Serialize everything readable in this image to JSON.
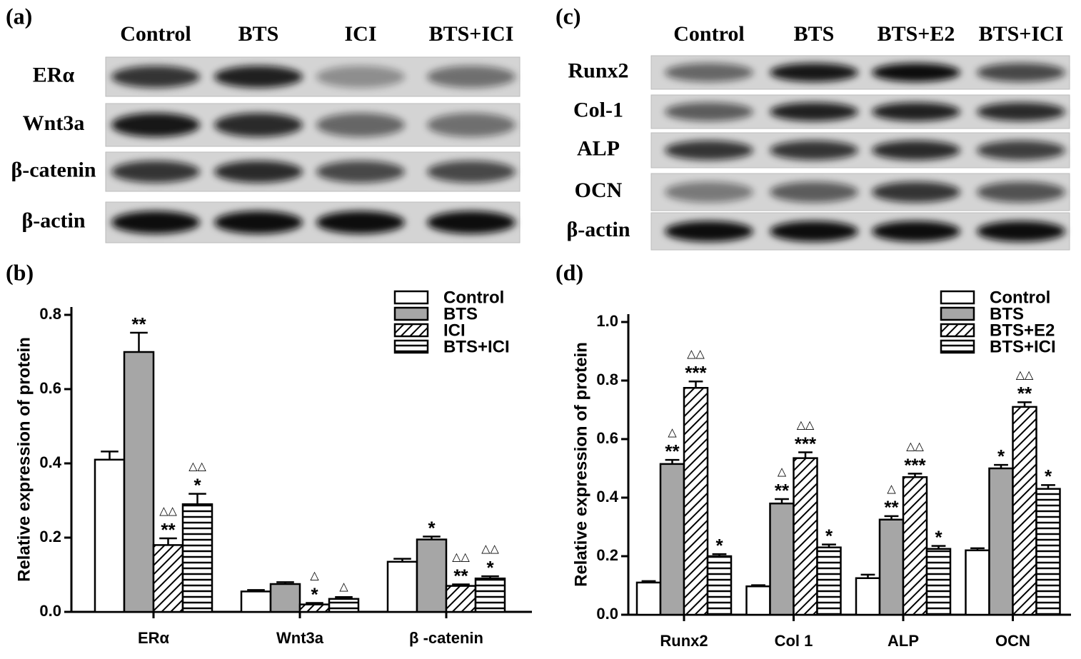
{
  "blot_a": {
    "panel_label": "(a)",
    "lanes": [
      "Control",
      "BTS",
      "ICI",
      "BTS+ICI"
    ],
    "rows": [
      "ERα",
      "Wnt3a",
      "β-catenin",
      "β-actin"
    ]
  },
  "blot_c": {
    "panel_label": "(c)",
    "lanes": [
      "Control",
      "BTS",
      "BTS+E2",
      "BTS+ICI"
    ],
    "rows": [
      "Runx2",
      "Col-1",
      "ALP",
      "OCN",
      "β-actin"
    ]
  },
  "chart_data": [
    {
      "type": "bar",
      "panel_label": "(b)",
      "y_label": "Relative expression of protein",
      "categories": [
        "ERα",
        "Wnt3a",
        "β -catenin"
      ],
      "ylim": [
        0,
        0.8
      ],
      "yticks": [
        {
          "value": 0,
          "label": "0.0"
        },
        0.2,
        0.4,
        0.6,
        0.8
      ],
      "legend": "top-right",
      "series": [
        {
          "name": "Control",
          "color": "#ffffff",
          "pattern": "solid",
          "values": [
            0.41,
            0.055,
            0.135
          ],
          "errors": [
            0.022,
            0.004,
            0.008
          ],
          "sig": [
            null,
            null,
            null
          ],
          "tri": [
            null,
            null,
            null
          ]
        },
        {
          "name": "BTS",
          "color": "#a6a6a6",
          "pattern": "solid",
          "values": [
            0.7,
            0.075,
            0.195
          ],
          "errors": [
            0.052,
            0.005,
            0.008
          ],
          "sig": [
            "**",
            null,
            "*"
          ],
          "tri": [
            null,
            null,
            null
          ]
        },
        {
          "name": "ICI",
          "color": "#ffffff",
          "pattern": "diagonal",
          "values": [
            0.18,
            0.02,
            0.07
          ],
          "errors": [
            0.018,
            0.004,
            0.004
          ],
          "sig": [
            "**",
            "*",
            "**"
          ],
          "tri": [
            "△△",
            "△",
            "△△"
          ]
        },
        {
          "name": "BTS+ICI",
          "color": "#ffffff",
          "pattern": "horizontal",
          "values": [
            0.29,
            0.035,
            0.09
          ],
          "errors": [
            0.028,
            0.005,
            0.006
          ],
          "sig": [
            "*",
            null,
            "*"
          ],
          "tri": [
            "△△",
            "△",
            "△△"
          ]
        }
      ]
    },
    {
      "type": "bar",
      "panel_label": "(d)",
      "y_label": "Relative expression of protein",
      "categories": [
        "Runx2",
        "Col 1",
        "ALP",
        "OCN"
      ],
      "ylim": [
        0,
        1.0
      ],
      "yticks": [
        {
          "value": 0,
          "label": "0.0"
        },
        0.2,
        0.4,
        0.6,
        0.8,
        {
          "value": 1,
          "label": "1.0"
        }
      ],
      "legend": "top-right",
      "series": [
        {
          "name": "Control",
          "color": "#ffffff",
          "pattern": "solid",
          "values": [
            0.11,
            0.097,
            0.125,
            0.22
          ],
          "errors": [
            0.005,
            0.004,
            0.012,
            0.007
          ],
          "sig": [
            null,
            null,
            null,
            null
          ],
          "tri": [
            null,
            null,
            null,
            null
          ]
        },
        {
          "name": "BTS",
          "color": "#a6a6a6",
          "pattern": "solid",
          "values": [
            0.515,
            0.38,
            0.325,
            0.5
          ],
          "errors": [
            0.014,
            0.015,
            0.012,
            0.012
          ],
          "sig": [
            "**",
            "**",
            "**",
            "*"
          ],
          "tri": [
            "△",
            "△",
            "△",
            null
          ]
        },
        {
          "name": "BTS+E2",
          "color": "#ffffff",
          "pattern": "diagonal",
          "values": [
            0.775,
            0.535,
            0.47,
            0.71
          ],
          "errors": [
            0.022,
            0.02,
            0.012,
            0.016
          ],
          "sig": [
            "***",
            "***",
            "***",
            "**"
          ],
          "tri": [
            "△△",
            "△△",
            "△△",
            "△△"
          ]
        },
        {
          "name": "BTS+ICI",
          "color": "#ffffff",
          "pattern": "horizontal",
          "values": [
            0.2,
            0.23,
            0.225,
            0.43
          ],
          "errors": [
            0.007,
            0.01,
            0.01,
            0.013
          ],
          "sig": [
            "*",
            "*",
            "*",
            "*"
          ],
          "tri": [
            null,
            null,
            null,
            null
          ]
        }
      ]
    }
  ]
}
